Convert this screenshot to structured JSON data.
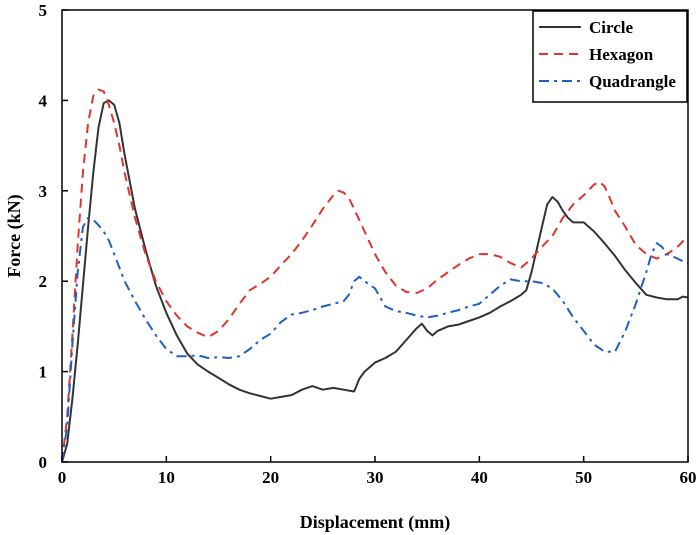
{
  "chart_data": {
    "type": "line",
    "xlabel": "Displacement (mm)",
    "ylabel": "Force (kN)",
    "xlim": [
      0,
      60
    ],
    "ylim": [
      0,
      5
    ],
    "xticks": [
      0,
      10,
      20,
      30,
      40,
      50,
      60
    ],
    "yticks": [
      0,
      1,
      2,
      3,
      4,
      5
    ],
    "grid": false,
    "legend_position": "top-right",
    "series": [
      {
        "name": "Circle",
        "color": "#333333",
        "style": "solid",
        "x": [
          0,
          0.5,
          1,
          1.5,
          2,
          2.5,
          3,
          3.5,
          4,
          4.5,
          5,
          5.5,
          6,
          7,
          8,
          9,
          10,
          11,
          12,
          13,
          14,
          15,
          16,
          17,
          18,
          19,
          20,
          21,
          22,
          23,
          24,
          25,
          26,
          27,
          28,
          28.5,
          29,
          30,
          31,
          32,
          33,
          34,
          34.5,
          35,
          35.5,
          36,
          37,
          38,
          39,
          40,
          41,
          42,
          43,
          44,
          44.5,
          45,
          45.5,
          46,
          46.5,
          47,
          47.5,
          48,
          48.5,
          49,
          50,
          51,
          52,
          53,
          54,
          55,
          56,
          57,
          58,
          59,
          59.5,
          60
        ],
        "y": [
          0,
          0.2,
          0.7,
          1.3,
          1.95,
          2.6,
          3.2,
          3.7,
          3.97,
          4.0,
          3.95,
          3.75,
          3.4,
          2.8,
          2.35,
          1.95,
          1.65,
          1.4,
          1.2,
          1.08,
          1.0,
          0.93,
          0.86,
          0.8,
          0.76,
          0.73,
          0.7,
          0.72,
          0.74,
          0.8,
          0.84,
          0.8,
          0.82,
          0.8,
          0.78,
          0.92,
          1.0,
          1.1,
          1.15,
          1.22,
          1.35,
          1.48,
          1.53,
          1.45,
          1.4,
          1.45,
          1.5,
          1.52,
          1.56,
          1.6,
          1.65,
          1.72,
          1.78,
          1.85,
          1.9,
          2.1,
          2.35,
          2.6,
          2.85,
          2.93,
          2.88,
          2.78,
          2.7,
          2.65,
          2.65,
          2.55,
          2.42,
          2.28,
          2.12,
          1.98,
          1.85,
          1.82,
          1.8,
          1.8,
          1.83,
          1.82
        ]
      },
      {
        "name": "Hexagon",
        "color": "#e0342f",
        "style": "dashed",
        "x": [
          0,
          0.5,
          1,
          1.5,
          2,
          2.5,
          3,
          3.5,
          4,
          4.5,
          5,
          5.5,
          6,
          7,
          8,
          9,
          10,
          11,
          12,
          13,
          14,
          15,
          16,
          17,
          18,
          19,
          20,
          21,
          22,
          23,
          24,
          25,
          26,
          26.5,
          27,
          27.5,
          28,
          29,
          30,
          31,
          32,
          33,
          34,
          35,
          36,
          37,
          38,
          39,
          40,
          41,
          42,
          43,
          44,
          45,
          46,
          47,
          48,
          49,
          50,
          51,
          51.5,
          52,
          52.5,
          53,
          54,
          55,
          56,
          57,
          58,
          59,
          60
        ],
        "y": [
          0,
          0.5,
          1.4,
          2.4,
          3.2,
          3.75,
          4.05,
          4.12,
          4.1,
          3.95,
          3.75,
          3.5,
          3.2,
          2.7,
          2.3,
          2.0,
          1.78,
          1.62,
          1.5,
          1.43,
          1.38,
          1.45,
          1.58,
          1.75,
          1.9,
          1.97,
          2.05,
          2.18,
          2.3,
          2.45,
          2.62,
          2.8,
          2.95,
          3.0,
          2.98,
          2.92,
          2.8,
          2.55,
          2.3,
          2.1,
          1.95,
          1.88,
          1.87,
          1.92,
          2.02,
          2.1,
          2.18,
          2.25,
          2.3,
          2.3,
          2.27,
          2.2,
          2.15,
          2.25,
          2.38,
          2.5,
          2.7,
          2.85,
          2.95,
          3.07,
          3.1,
          3.05,
          2.92,
          2.78,
          2.6,
          2.4,
          2.3,
          2.25,
          2.3,
          2.38,
          2.5
        ]
      },
      {
        "name": "Quadrangle",
        "color": "#1f60c4",
        "style": "dashdot",
        "x": [
          0,
          0.5,
          1,
          1.5,
          2,
          2.5,
          3,
          3.5,
          4,
          4.5,
          5,
          6,
          7,
          8,
          9,
          10,
          11,
          12,
          13,
          14,
          15,
          16,
          17,
          18,
          19,
          20,
          21,
          22,
          23,
          24,
          25,
          26,
          27,
          27.5,
          28,
          28.5,
          29,
          30,
          31,
          32,
          33,
          34,
          35,
          36,
          37,
          38,
          39,
          40,
          41,
          42,
          43,
          44,
          45,
          46,
          47,
          48,
          49,
          50,
          51,
          52,
          53,
          54,
          55,
          56,
          56.5,
          57,
          57.5,
          58,
          59,
          59.5,
          60
        ],
        "y": [
          0,
          0.4,
          1.3,
          2.1,
          2.6,
          2.7,
          2.68,
          2.62,
          2.55,
          2.45,
          2.3,
          2.0,
          1.78,
          1.58,
          1.4,
          1.25,
          1.17,
          1.17,
          1.18,
          1.15,
          1.16,
          1.15,
          1.17,
          1.25,
          1.35,
          1.42,
          1.55,
          1.63,
          1.65,
          1.68,
          1.72,
          1.75,
          1.78,
          1.85,
          2.0,
          2.05,
          2.0,
          1.92,
          1.72,
          1.67,
          1.65,
          1.62,
          1.6,
          1.62,
          1.65,
          1.68,
          1.72,
          1.75,
          1.85,
          1.95,
          2.02,
          2.0,
          2.0,
          1.98,
          1.92,
          1.78,
          1.6,
          1.45,
          1.3,
          1.22,
          1.22,
          1.45,
          1.75,
          2.1,
          2.3,
          2.42,
          2.38,
          2.3,
          2.25,
          2.22,
          2.2
        ]
      }
    ]
  }
}
